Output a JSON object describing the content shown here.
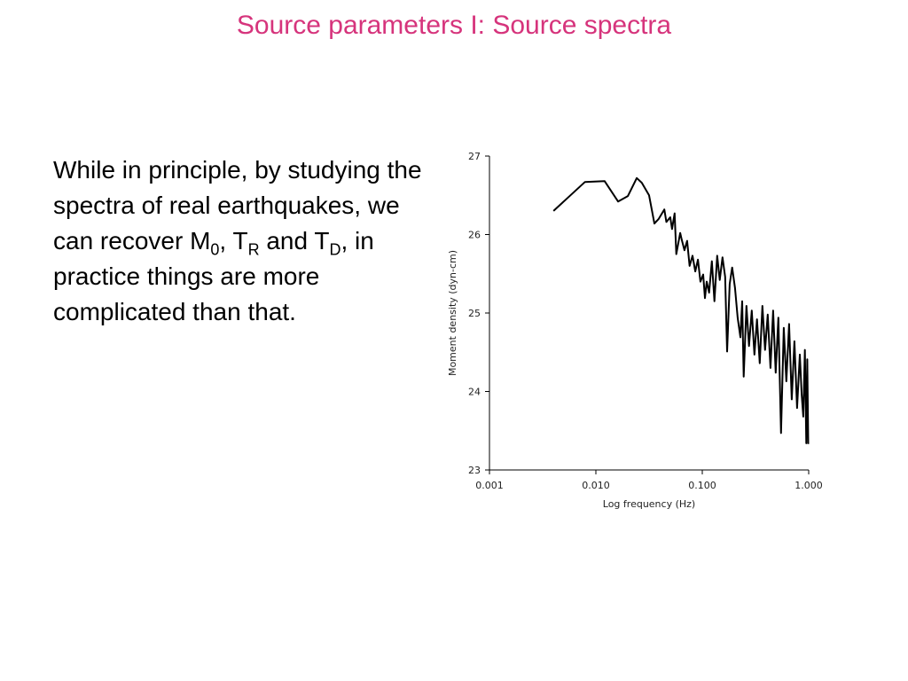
{
  "slide": {
    "title": "Source parameters I: Source spectra",
    "paragraph": [
      "While in principle, by studying the spectra of real earthquakes, we can recover M",
      "0",
      ", T",
      "R",
      " and T",
      "D",
      ", in practice things are more complicated than that."
    ]
  },
  "chart_data": {
    "type": "line",
    "x_label": "Log frequency (Hz)",
    "y_label": "Moment density (dyn-cm)",
    "log_x": true,
    "grid": false,
    "xlim": [
      0.001,
      1
    ],
    "xticks": [
      {
        "value": 0.001,
        "label": "0.001"
      },
      {
        "value": 0.01,
        "label": "0.010"
      },
      {
        "value": 0.1,
        "label": "0.100"
      },
      {
        "value": 1,
        "label": "1.000"
      }
    ],
    "ylim": [
      23,
      27
    ],
    "yticks": [
      23,
      24,
      25,
      26,
      27
    ],
    "series": [
      {
        "color": "#000000",
        "x": [
          0.004,
          0.0079,
          0.0121,
          0.0162,
          0.02,
          0.0242,
          0.027,
          0.0316,
          0.0355,
          0.039,
          0.044,
          0.046,
          0.05,
          0.052,
          0.055,
          0.057,
          0.062,
          0.064,
          0.068,
          0.072,
          0.076,
          0.081,
          0.086,
          0.091,
          0.096,
          0.102,
          0.106,
          0.11,
          0.116,
          0.123,
          0.13,
          0.138,
          0.146,
          0.155,
          0.164,
          0.171,
          0.181,
          0.191,
          0.203,
          0.215,
          0.228,
          0.237,
          0.245,
          0.26,
          0.275,
          0.292,
          0.309,
          0.327,
          0.347,
          0.367,
          0.389,
          0.412,
          0.437,
          0.463,
          0.49,
          0.519,
          0.55,
          0.583,
          0.617,
          0.654,
          0.693,
          0.734,
          0.778,
          0.825,
          0.86,
          0.89,
          0.92,
          0.95,
          0.97,
          0.99
        ],
        "values": [
          26.3,
          26.67,
          26.68,
          26.42,
          26.49,
          26.72,
          26.66,
          26.5,
          26.14,
          26.2,
          26.32,
          26.16,
          26.22,
          26.07,
          26.27,
          25.75,
          26.02,
          25.94,
          25.8,
          25.92,
          25.6,
          25.73,
          25.53,
          25.68,
          25.4,
          25.49,
          25.19,
          25.4,
          25.26,
          25.66,
          25.15,
          25.73,
          25.42,
          25.71,
          25.46,
          24.51,
          25.37,
          25.58,
          25.32,
          24.94,
          24.69,
          25.15,
          24.19,
          25.09,
          24.58,
          25.03,
          24.47,
          24.92,
          24.36,
          25.09,
          24.53,
          24.98,
          24.3,
          25.03,
          24.24,
          24.94,
          23.47,
          24.81,
          24.13,
          24.86,
          23.9,
          24.64,
          23.79,
          24.47,
          23.96,
          23.68,
          24.53,
          23.34,
          24.41,
          23.33
        ]
      }
    ]
  }
}
